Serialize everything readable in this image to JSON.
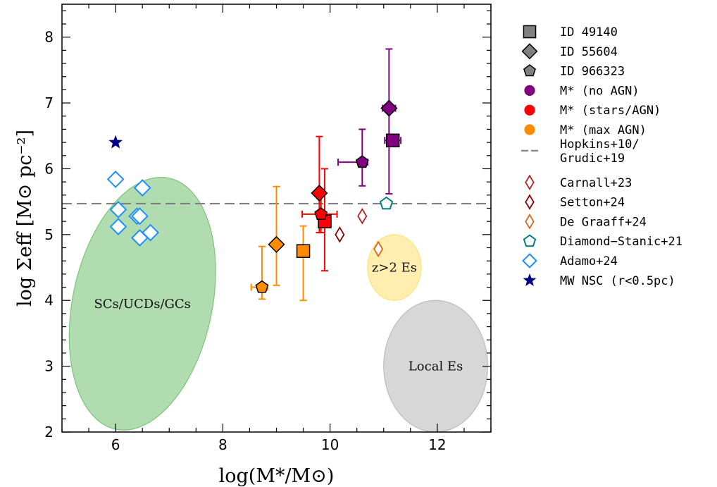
{
  "chart_data": {
    "type": "scatter",
    "title": "",
    "xlabel": "log(M*/M⊙)",
    "ylabel": "log Σeff [M⊙ pc⁻²]",
    "xlim": [
      5,
      13
    ],
    "ylim": [
      2,
      8.5
    ],
    "xticks": [
      "6",
      "8",
      "10",
      "12"
    ],
    "yticks": [
      "2",
      "3",
      "4",
      "5",
      "6",
      "7",
      "8"
    ],
    "grid": false,
    "legend_position": "outside-right",
    "colors": {
      "no_agn": "#800080",
      "stars_agn": "#ff0000",
      "max_agn": "#ff8c00",
      "generic": "#808080",
      "carnall": "#b22222",
      "setton": "#8b0000",
      "degraaff": "#d2691e",
      "diamond": "#008080",
      "adamo": "#1e90ff",
      "mw": "#00008b",
      "sc_region": "#7cc47a",
      "zes_region": "#ffe27a",
      "local_region": "#bdbdbd"
    },
    "hline": {
      "y": 5.47,
      "label": "Hopkins+10/ Grudic+19"
    },
    "regions": [
      {
        "label": "SCs/UCDs/GCs",
        "cx": 6.5,
        "cy": 3.95,
        "rx": 1.3,
        "ry": 1.95,
        "angle": 12,
        "color": "sc_region"
      },
      {
        "label": "z>2 Es",
        "cx": 11.2,
        "cy": 4.5,
        "rx": 0.5,
        "ry": 0.5,
        "angle": 0,
        "color": "zes_region"
      },
      {
        "label": "Local Es",
        "cx": 11.97,
        "cy": 3.0,
        "rx": 0.97,
        "ry": 1.0,
        "angle": 0,
        "color": "local_region"
      }
    ],
    "series": [
      {
        "name": "ID 49140",
        "marker": "square",
        "points": [
          {
            "x": 11.17,
            "y": 6.43,
            "color": "no_agn",
            "xerr": 0.15,
            "yerr_up": 0.0,
            "yerr_dn": 0.0
          },
          {
            "x": 9.9,
            "y": 5.2,
            "color": "stars_agn",
            "xerr": 0.0,
            "yerr_up": 0.8,
            "yerr_dn": 0.75
          },
          {
            "x": 9.5,
            "y": 4.75,
            "color": "max_agn",
            "xerr": 0.0,
            "yerr_up": 0.38,
            "yerr_dn": 0.75
          }
        ]
      },
      {
        "name": "ID 55604",
        "marker": "diamond",
        "points": [
          {
            "x": 11.1,
            "y": 6.92,
            "color": "no_agn",
            "xerr": 0.12,
            "yerr_up": 0.9,
            "yerr_dn": 1.3
          },
          {
            "x": 9.8,
            "y": 5.63,
            "color": "stars_agn",
            "xerr": 0.08,
            "yerr_up": 0.86,
            "yerr_dn": 0.6
          },
          {
            "x": 9.0,
            "y": 4.85,
            "color": "max_agn",
            "xerr": 0.0,
            "yerr_up": 0.88,
            "yerr_dn": 0.62
          }
        ]
      },
      {
        "name": "ID 966323",
        "marker": "pentagon",
        "points": [
          {
            "x": 10.6,
            "y": 6.1,
            "color": "no_agn",
            "xerr_lo": 0.45,
            "xerr_hi": 0.1,
            "yerr_up": 0.5,
            "yerr_dn": 0.36
          },
          {
            "x": 9.83,
            "y": 5.31,
            "color": "stars_agn",
            "xerr_lo": 0.35,
            "xerr_hi": 0.3,
            "yerr_up": 0.38,
            "yerr_dn": 0.28
          },
          {
            "x": 8.73,
            "y": 4.2,
            "color": "max_agn",
            "xerr_lo": 0.2,
            "xerr_hi": 0.1,
            "yerr_up": 0.62,
            "yerr_dn": 0.18
          }
        ]
      },
      {
        "name": "Carnall+23",
        "marker": "thin-diamond",
        "open": true,
        "color": "carnall",
        "points": [
          {
            "x": 10.6,
            "y": 5.28
          }
        ]
      },
      {
        "name": "Setton+24",
        "marker": "thin-diamond",
        "open": true,
        "color": "setton",
        "points": [
          {
            "x": 10.18,
            "y": 5.0
          }
        ]
      },
      {
        "name": "De Graaff+24",
        "marker": "thin-diamond",
        "open": true,
        "color": "degraaff",
        "points": [
          {
            "x": 10.9,
            "y": 4.78
          }
        ]
      },
      {
        "name": "Diamond−Stanic+21",
        "marker": "pentagon",
        "open": true,
        "color": "diamond",
        "points": [
          {
            "x": 11.05,
            "y": 5.47
          }
        ]
      },
      {
        "name": "Adamo+24",
        "marker": "diamond",
        "open": true,
        "color": "adamo",
        "points": [
          {
            "x": 6.0,
            "y": 5.84
          },
          {
            "x": 6.5,
            "y": 5.71
          },
          {
            "x": 6.05,
            "y": 5.38
          },
          {
            "x": 6.4,
            "y": 5.28
          },
          {
            "x": 6.45,
            "y": 5.28
          },
          {
            "x": 6.05,
            "y": 5.12
          },
          {
            "x": 6.65,
            "y": 5.03
          },
          {
            "x": 6.45,
            "y": 4.95
          }
        ]
      },
      {
        "name": "MW NSC (r<0.5pc)",
        "marker": "star",
        "color": "mw",
        "points": [
          {
            "x": 6.0,
            "y": 6.4
          }
        ]
      }
    ]
  },
  "legend": {
    "items": [
      {
        "label": "ID 49140",
        "marker": "square",
        "color": "generic"
      },
      {
        "label": "ID 55604",
        "marker": "diamond",
        "color": "generic"
      },
      {
        "label": "ID 966323",
        "marker": "pentagon",
        "color": "generic"
      },
      {
        "label": "M* (no AGN)",
        "marker": "circle",
        "color": "no_agn"
      },
      {
        "label": "M* (stars/AGN)",
        "marker": "circle",
        "color": "stars_agn"
      },
      {
        "label": "M* (max AGN)",
        "marker": "circle",
        "color": "max_agn"
      },
      {
        "label": "Hopkins+10/",
        "label2": "Grudic+19",
        "marker": "dash",
        "color": "generic"
      },
      {
        "label": "Carnall+23",
        "marker": "thin-diamond",
        "color": "carnall"
      },
      {
        "label": "Setton+24",
        "marker": "thin-diamond",
        "color": "setton"
      },
      {
        "label": "De Graaff+24",
        "marker": "thin-diamond",
        "color": "degraaff"
      },
      {
        "label": "Diamond−Stanic+21",
        "marker": "open-pentagon",
        "color": "diamond"
      },
      {
        "label": "Adamo+24",
        "marker": "open-diamond",
        "color": "adamo"
      },
      {
        "label": "MW NSC (r<0.5pc)",
        "marker": "star",
        "color": "mw"
      }
    ]
  }
}
